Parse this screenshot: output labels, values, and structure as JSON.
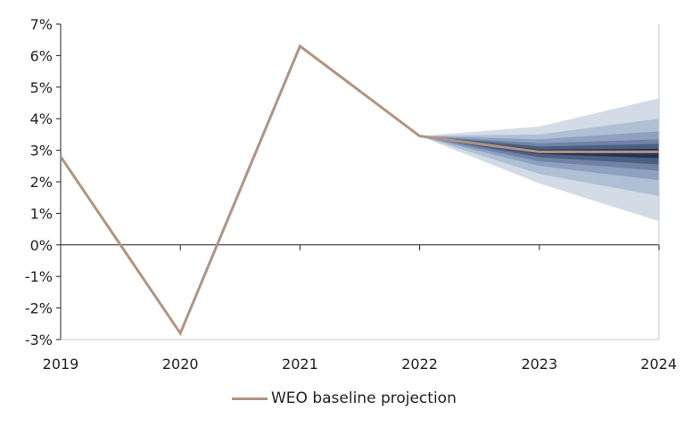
{
  "chart_data": {
    "type": "line",
    "title": "",
    "xlabel": "",
    "ylabel": "",
    "x": [
      2019,
      2020,
      2021,
      2022,
      2023,
      2024
    ],
    "xlim": [
      2019,
      2024
    ],
    "ylim": [
      -3,
      7
    ],
    "y_ticks": [
      7,
      6,
      5,
      4,
      3,
      2,
      1,
      0,
      -1,
      -2,
      -3
    ],
    "y_tick_labels": [
      "7%",
      "6%",
      "5%",
      "4%",
      "3%",
      "2%",
      "1%",
      "0%",
      "-1%",
      "-2%",
      "-3%"
    ],
    "x_tick_labels": [
      "2019",
      "2020",
      "2021",
      "2022",
      "2023",
      "2024"
    ],
    "series": [
      {
        "name": "WEO baseline projection",
        "color": "#b09482",
        "x": [
          2019,
          2020,
          2021,
          2022,
          2023,
          2024
        ],
        "values": [
          2.8,
          -2.8,
          6.3,
          3.45,
          2.95,
          2.95
        ]
      }
    ],
    "fan_bands": [
      {
        "color": "#d3dbe7",
        "x": [
          2022,
          2023,
          2024
        ],
        "lower": [
          3.45,
          1.95,
          0.75
        ],
        "upper": [
          3.45,
          3.75,
          4.65
        ]
      },
      {
        "color": "#afbfd4",
        "x": [
          2022,
          2023,
          2024
        ],
        "lower": [
          3.45,
          2.25,
          1.55
        ],
        "upper": [
          3.45,
          3.5,
          4.0
        ]
      },
      {
        "color": "#8ea1c0",
        "x": [
          2022,
          2023,
          2024
        ],
        "lower": [
          3.45,
          2.5,
          2.05
        ],
        "upper": [
          3.45,
          3.35,
          3.6
        ]
      },
      {
        "color": "#6f83a6",
        "x": [
          2022,
          2023,
          2024
        ],
        "lower": [
          3.45,
          2.65,
          2.35
        ],
        "upper": [
          3.45,
          3.22,
          3.35
        ]
      },
      {
        "color": "#4c5f80",
        "x": [
          2022,
          2023,
          2024
        ],
        "lower": [
          3.45,
          2.78,
          2.55
        ],
        "upper": [
          3.45,
          3.12,
          3.2
        ]
      },
      {
        "color": "#243450",
        "x": [
          2022,
          2023,
          2024
        ],
        "lower": [
          3.45,
          2.88,
          2.75
        ],
        "upper": [
          3.45,
          3.02,
          3.05
        ]
      }
    ],
    "legend": {
      "label": "WEO baseline projection",
      "placement": "bottom-center"
    },
    "grid": false
  }
}
